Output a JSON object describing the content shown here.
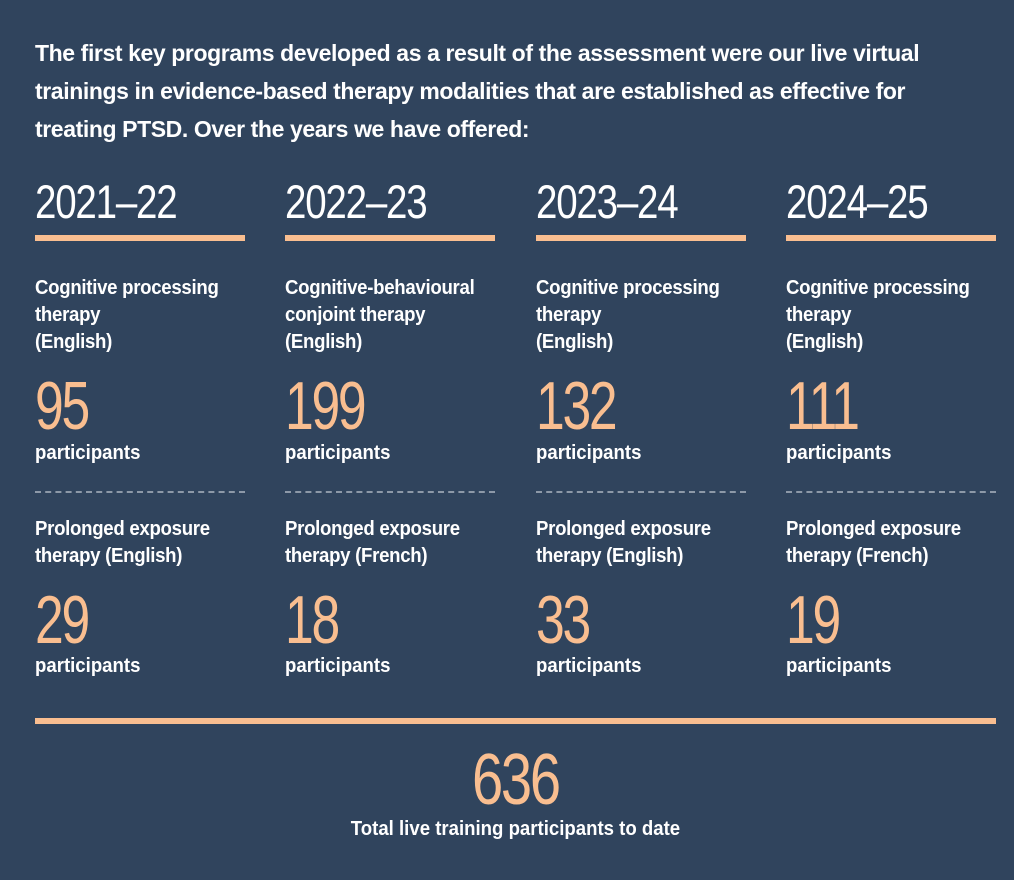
{
  "intro": "The first key programs developed as a result of the assessment were our live virtual trainings in evidence-based therapy modalities that are established as effective for treating PTSD. Over the years we have offered:",
  "accent_color": "#f9be90",
  "background_color": "#30445d",
  "years": [
    {
      "year": "2021–22",
      "program1": {
        "name": "Cognitive processing\ntherapy\n(English)",
        "count": "95",
        "unit": "participants"
      },
      "program2": {
        "name": "Prolonged exposure\ntherapy (English)",
        "count": "29",
        "unit": "participants"
      }
    },
    {
      "year": "2022–23",
      "program1": {
        "name": "Cognitive-behavioural\nconjoint therapy\n(English)",
        "count": "199",
        "unit": "participants"
      },
      "program2": {
        "name": "Prolonged exposure\ntherapy (French)",
        "count": "18",
        "unit": "participants"
      }
    },
    {
      "year": "2023–24",
      "program1": {
        "name": "Cognitive processing\ntherapy\n(English)",
        "count": "132",
        "unit": "participants"
      },
      "program2": {
        "name": "Prolonged exposure\ntherapy (English)",
        "count": "33",
        "unit": "participants"
      }
    },
    {
      "year": "2024–25",
      "program1": {
        "name": "Cognitive processing\ntherapy\n(English)",
        "count": "111",
        "unit": "participants"
      },
      "program2": {
        "name": "Prolonged exposure\ntherapy (French)",
        "count": "19",
        "unit": "participants"
      }
    }
  ],
  "total": {
    "count": "636",
    "label": "Total live training participants to date"
  }
}
